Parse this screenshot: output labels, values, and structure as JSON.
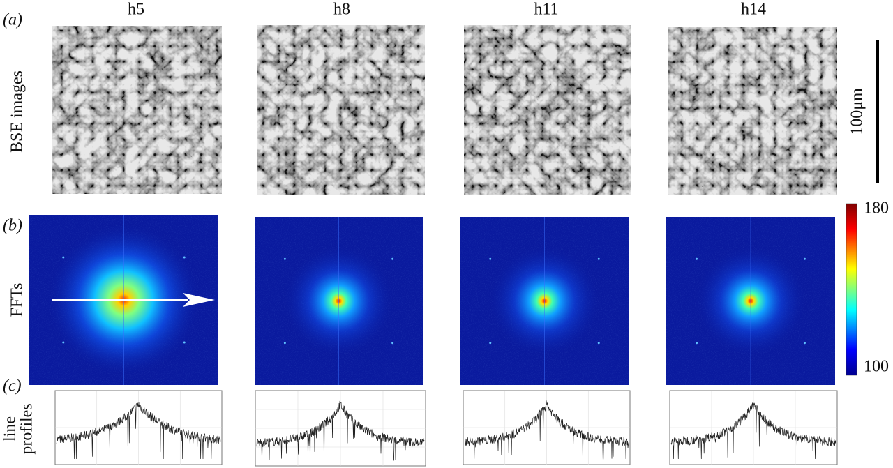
{
  "panel_labels": [
    "(a)",
    "(b)",
    "(c)"
  ],
  "columns": [
    "h5",
    "h8",
    "h11",
    "h14"
  ],
  "rows": {
    "bse": "BSE images",
    "fft": "FFTs",
    "profiles": [
      "line",
      "profiles"
    ]
  },
  "scale_bar": "100μm",
  "colorbar": {
    "max": 180,
    "min": 100
  }
}
